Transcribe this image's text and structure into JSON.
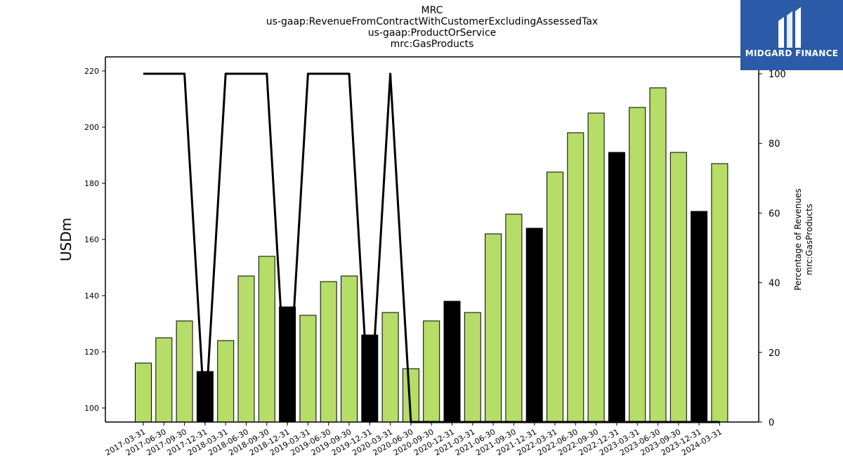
{
  "titles": [
    "MRC",
    "us-gaap:RevenueFromContractWithCustomerExcludingAssessedTax",
    "us-gaap:ProductOrService",
    "mrc:GasProducts"
  ],
  "logo": {
    "text": "MIDGARD FINANCE",
    "icon": "midgard-logo-icon"
  },
  "colors": {
    "bar": "#b5dd68",
    "bar_highlight": "#000000",
    "line": "#000000",
    "logo_bg": "#2b5aa8"
  },
  "chart_data": {
    "type": "bar",
    "categories": [
      "2017-03-31",
      "2017-06-30",
      "2017-09-30",
      "2017-12-31",
      "2018-03-31",
      "2018-06-30",
      "2018-09-30",
      "2018-12-31",
      "2019-03-31",
      "2019-06-30",
      "2019-09-30",
      "2019-12-31",
      "2020-03-31",
      "2020-06-30",
      "2020-09-30",
      "2020-12-31",
      "2021-03-31",
      "2021-06-30",
      "2021-09-30",
      "2021-12-31",
      "2022-03-31",
      "2022-06-30",
      "2022-09-30",
      "2022-12-31",
      "2023-03-31",
      "2023-06-30",
      "2023-09-30",
      "2023-12-31",
      "2024-03-31"
    ],
    "values": [
      116,
      125,
      131,
      113,
      124,
      147,
      154,
      136,
      133,
      145,
      147,
      126,
      134,
      114,
      131,
      138,
      134,
      162,
      169,
      164,
      184,
      198,
      205,
      191,
      207,
      214,
      191,
      170,
      187
    ],
    "highlight": [
      false,
      false,
      false,
      true,
      false,
      false,
      false,
      true,
      false,
      false,
      false,
      true,
      false,
      false,
      false,
      true,
      false,
      false,
      false,
      true,
      false,
      false,
      false,
      true,
      false,
      false,
      false,
      true,
      false
    ],
    "pct_line": [
      100,
      100,
      100,
      0,
      100,
      100,
      100,
      0,
      100,
      100,
      100,
      0,
      100,
      0,
      0,
      0,
      0,
      0,
      0,
      0,
      0,
      0,
      0,
      0,
      0,
      0,
      0,
      0,
      0
    ],
    "ylabel": "USDm",
    "ylim": [
      95,
      225
    ],
    "yticks": [
      100,
      120,
      140,
      160,
      180,
      200,
      220
    ],
    "y2label": [
      "Percentage of Revenues",
      "mrc:GasProducts"
    ],
    "y2lim": [
      0,
      100
    ],
    "y2ticks": [
      0,
      20,
      40,
      60,
      80,
      100
    ],
    "grid": false
  }
}
